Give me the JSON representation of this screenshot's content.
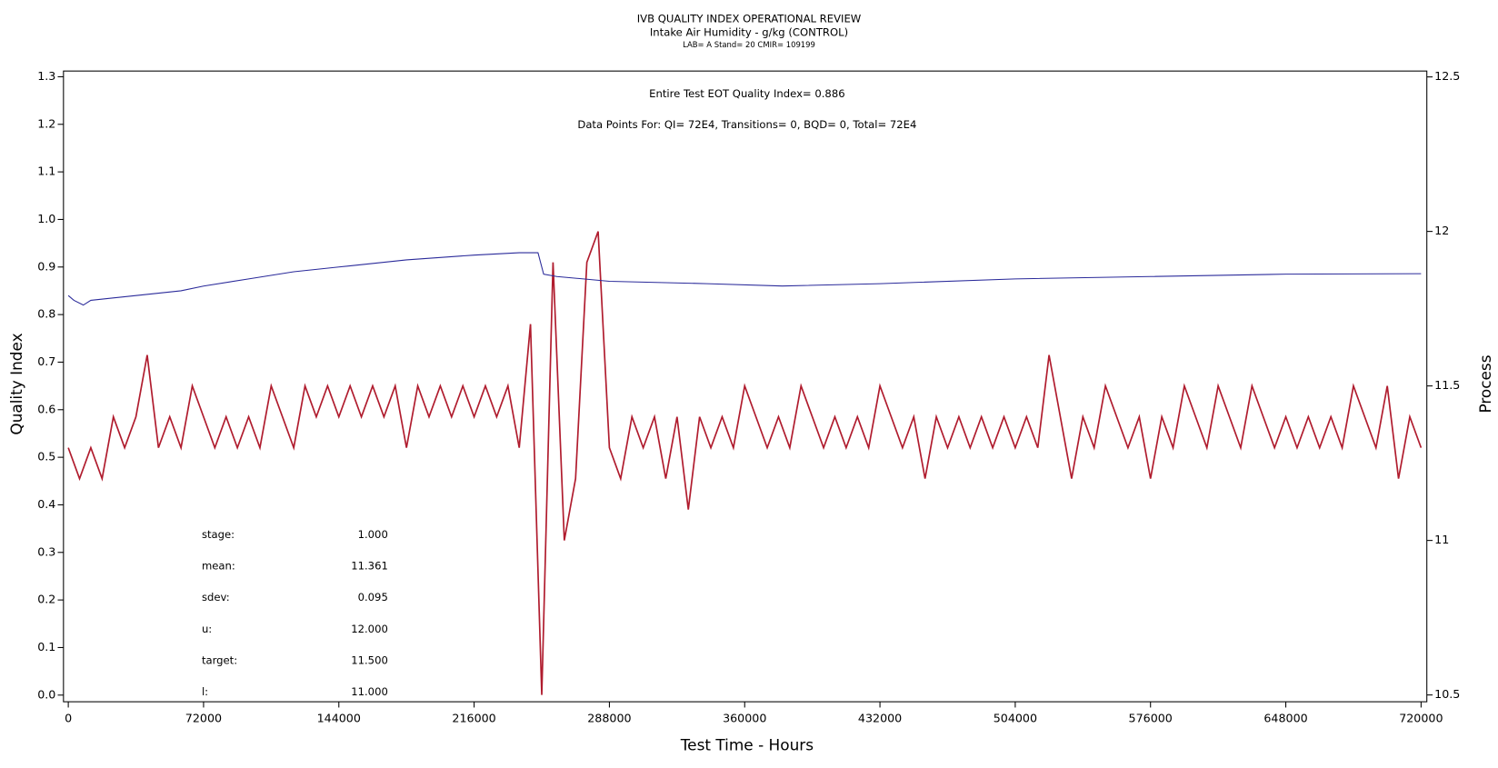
{
  "chart_data": {
    "type": "line",
    "title": "IVB QUALITY INDEX OPERATIONAL REVIEW",
    "subtitle": "Intake Air Humidity - g/kg (CONTROL)",
    "subtitle2": "LAB= A Stand= 20 CMIR= 109199",
    "annotations": [
      "Entire Test EOT Quality Index=   0.886",
      "Data Points For: QI=  72E4, Transitions=     0, BQD=     0, Total=  72E4"
    ],
    "stats": [
      {
        "label": "stage:",
        "value": "1.000"
      },
      {
        "label": "mean:",
        "value": "11.361"
      },
      {
        "label": "sdev:",
        "value": "0.095"
      },
      {
        "label": "u:",
        "value": "12.000"
      },
      {
        "label": "target:",
        "value": "11.500"
      },
      {
        "label": "l:",
        "value": "11.000"
      }
    ],
    "x_label": "Test Time - Hours",
    "y_label": "Quality Index",
    "y2_label": "Process",
    "xlim": [
      -2555,
      723066
    ],
    "xticks": [
      0,
      72000,
      144000,
      216000,
      288000,
      360000,
      432000,
      504000,
      576000,
      648000,
      720000
    ],
    "ylim": [
      -0.014,
      1.312
    ],
    "yticks": [
      {
        "value": 0,
        "label": "0.0"
      },
      0.1,
      0.2,
      0.3,
      0.4,
      0.5,
      0.6,
      0.7,
      0.8,
      0.9,
      {
        "value": 1,
        "label": "1.0"
      },
      1.1,
      1.2,
      1.3
    ],
    "y2lim": [
      10.478,
      12.519
    ],
    "y2ticks": [
      10.5,
      11,
      11.5,
      12,
      12.5
    ],
    "series": [
      {
        "color": "#b01c2e",
        "axis": "y2",
        "x": [
          0,
          6000,
          12000,
          18000,
          24000,
          30000,
          36000,
          42000,
          48000,
          54000,
          60000,
          66000,
          72000,
          78000,
          84000,
          90000,
          96000,
          102000,
          108000,
          114000,
          120000,
          126000,
          132000,
          138000,
          144000,
          150000,
          156000,
          162000,
          168000,
          174000,
          180000,
          186000,
          192000,
          198000,
          204000,
          210000,
          216000,
          222000,
          228000,
          234000,
          240000,
          246000,
          252000,
          258000,
          264000,
          270000,
          276000,
          282000,
          288000,
          294000,
          300000,
          306000,
          312000,
          318000,
          324000,
          330000,
          336000,
          342000,
          348000,
          354000,
          360000,
          366000,
          372000,
          378000,
          384000,
          390000,
          396000,
          402000,
          408000,
          414000,
          420000,
          426000,
          432000,
          438000,
          444000,
          450000,
          456000,
          462000,
          468000,
          474000,
          480000,
          486000,
          492000,
          498000,
          504000,
          510000,
          516000,
          522000,
          528000,
          534000,
          540000,
          546000,
          552000,
          558000,
          564000,
          570000,
          576000,
          582000,
          588000,
          594000,
          600000,
          606000,
          612000,
          618000,
          624000,
          630000,
          636000,
          642000,
          648000,
          654000,
          660000,
          666000,
          672000,
          678000,
          684000,
          690000,
          696000,
          702000,
          708000,
          714000,
          720000
        ],
        "values": [
          11.3,
          11.2,
          11.3,
          11.2,
          11.4,
          11.3,
          11.4,
          11.6,
          11.3,
          11.4,
          11.3,
          11.5,
          11.4,
          11.3,
          11.4,
          11.3,
          11.4,
          11.3,
          11.5,
          11.4,
          11.3,
          11.5,
          11.4,
          11.5,
          11.4,
          11.5,
          11.4,
          11.5,
          11.4,
          11.5,
          11.3,
          11.5,
          11.4,
          11.5,
          11.4,
          11.5,
          11.4,
          11.5,
          11.4,
          11.5,
          11.3,
          11.7,
          10.5,
          11.9,
          11.0,
          11.2,
          11.9,
          12.0,
          11.3,
          11.2,
          11.4,
          11.3,
          11.4,
          11.2,
          11.4,
          11.1,
          11.4,
          11.3,
          11.4,
          11.3,
          11.5,
          11.4,
          11.3,
          11.4,
          11.3,
          11.5,
          11.4,
          11.3,
          11.4,
          11.3,
          11.4,
          11.3,
          11.5,
          11.4,
          11.3,
          11.4,
          11.2,
          11.4,
          11.3,
          11.4,
          11.3,
          11.4,
          11.3,
          11.4,
          11.3,
          11.4,
          11.3,
          11.6,
          11.4,
          11.2,
          11.4,
          11.3,
          11.5,
          11.4,
          11.3,
          11.4,
          11.2,
          11.4,
          11.3,
          11.5,
          11.4,
          11.3,
          11.5,
          11.4,
          11.3,
          11.5,
          11.4,
          11.3,
          11.4,
          11.3,
          11.4,
          11.3,
          11.4,
          11.3,
          11.5,
          11.4,
          11.3,
          11.5,
          11.2,
          11.4,
          11.3
        ]
      },
      {
        "color": "#2a2a9a",
        "axis": "y",
        "x": [
          0,
          3000,
          8000,
          12000,
          36000,
          60000,
          72000,
          96000,
          120000,
          144000,
          180000,
          216000,
          240000,
          250000,
          253000,
          260000,
          288000,
          340000,
          380000,
          432000,
          504000,
          576000,
          648000,
          720000
        ],
        "values": [
          0.84,
          0.83,
          0.82,
          0.83,
          0.84,
          0.85,
          0.86,
          0.875,
          0.89,
          0.9,
          0.915,
          0.925,
          0.93,
          0.93,
          0.885,
          0.88,
          0.87,
          0.865,
          0.86,
          0.865,
          0.875,
          0.88,
          0.885,
          0.886
        ]
      }
    ]
  }
}
